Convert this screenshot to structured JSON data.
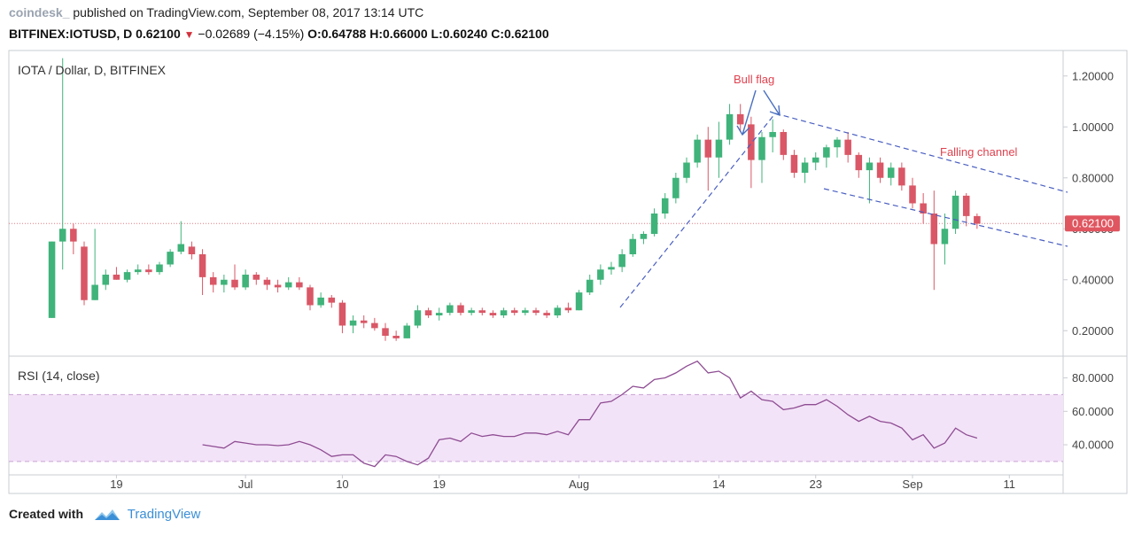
{
  "header": {
    "brand": "coindesk_",
    "published": "published on TradingView.com, September 08, 2017 13:14 UTC",
    "symbol": "BITFINEX:IOTUSD, D",
    "last": "0.62100",
    "change": "−0.02689 (−4.15%)",
    "o_label": "O:",
    "o": "0.64788",
    "h_label": "H:",
    "h": "0.66000",
    "l_label": "L:",
    "l": "0.60240",
    "c_label": "C:",
    "c": "0.62100"
  },
  "footer": {
    "created_with": "Created with",
    "tradingview": "TradingView"
  },
  "colors": {
    "up": "#3fb37a",
    "down": "#d95766",
    "rsi_line": "#8e4d93",
    "rsi_band": "#f3e3f8",
    "trend": "#4a5fc1",
    "annotation": "#e0424f"
  },
  "chart_data": [
    {
      "type": "candlestick",
      "title": "IOTA / Dollar, D, BITFINEX",
      "ylim": [
        0.1,
        1.3
      ],
      "yticks": [
        "1.20000",
        "1.00000",
        "0.80000",
        "0.60000",
        "0.40000",
        "0.20000"
      ],
      "y_tick_values": [
        1.2,
        1.0,
        0.8,
        0.6,
        0.4,
        0.2
      ],
      "current_price_label": "0.62100",
      "current_price": 0.621,
      "x_tick_labels": [
        "19",
        "Jul",
        "10",
        "19",
        "Aug",
        "14",
        "23",
        "Sep",
        "11"
      ],
      "x_tick_days": [
        8,
        20,
        29,
        38,
        51,
        64,
        73,
        82,
        91
      ],
      "xlim": [
        -2,
        96
      ],
      "annotations": [
        {
          "text": "Bull flag"
        },
        {
          "text": "Falling channel"
        }
      ],
      "candles": [
        {
          "d": 2,
          "o": 0.25,
          "h": 0.55,
          "l": 0.25,
          "c": 0.55
        },
        {
          "d": 3,
          "o": 0.55,
          "h": 1.27,
          "l": 0.44,
          "c": 0.6
        },
        {
          "d": 4,
          "o": 0.6,
          "h": 0.62,
          "l": 0.5,
          "c": 0.55
        },
        {
          "d": 5,
          "o": 0.53,
          "h": 0.55,
          "l": 0.3,
          "c": 0.32
        },
        {
          "d": 6,
          "o": 0.32,
          "h": 0.6,
          "l": 0.32,
          "c": 0.38
        },
        {
          "d": 7,
          "o": 0.38,
          "h": 0.44,
          "l": 0.36,
          "c": 0.42
        },
        {
          "d": 8,
          "o": 0.42,
          "h": 0.45,
          "l": 0.4,
          "c": 0.4
        },
        {
          "d": 9,
          "o": 0.4,
          "h": 0.44,
          "l": 0.39,
          "c": 0.43
        },
        {
          "d": 10,
          "o": 0.43,
          "h": 0.46,
          "l": 0.42,
          "c": 0.44
        },
        {
          "d": 11,
          "o": 0.44,
          "h": 0.46,
          "l": 0.42,
          "c": 0.43
        },
        {
          "d": 12,
          "o": 0.43,
          "h": 0.47,
          "l": 0.42,
          "c": 0.46
        },
        {
          "d": 13,
          "o": 0.46,
          "h": 0.52,
          "l": 0.45,
          "c": 0.51
        },
        {
          "d": 14,
          "o": 0.51,
          "h": 0.63,
          "l": 0.5,
          "c": 0.54
        },
        {
          "d": 15,
          "o": 0.53,
          "h": 0.55,
          "l": 0.48,
          "c": 0.5
        },
        {
          "d": 16,
          "o": 0.5,
          "h": 0.52,
          "l": 0.34,
          "c": 0.41
        },
        {
          "d": 17,
          "o": 0.41,
          "h": 0.43,
          "l": 0.35,
          "c": 0.38
        },
        {
          "d": 18,
          "o": 0.38,
          "h": 0.42,
          "l": 0.35,
          "c": 0.4
        },
        {
          "d": 19,
          "o": 0.4,
          "h": 0.46,
          "l": 0.36,
          "c": 0.37
        },
        {
          "d": 20,
          "o": 0.37,
          "h": 0.44,
          "l": 0.36,
          "c": 0.42
        },
        {
          "d": 21,
          "o": 0.42,
          "h": 0.43,
          "l": 0.38,
          "c": 0.4
        },
        {
          "d": 22,
          "o": 0.4,
          "h": 0.41,
          "l": 0.36,
          "c": 0.38
        },
        {
          "d": 23,
          "o": 0.38,
          "h": 0.4,
          "l": 0.35,
          "c": 0.37
        },
        {
          "d": 24,
          "o": 0.37,
          "h": 0.41,
          "l": 0.36,
          "c": 0.39
        },
        {
          "d": 25,
          "o": 0.39,
          "h": 0.41,
          "l": 0.36,
          "c": 0.37
        },
        {
          "d": 26,
          "o": 0.37,
          "h": 0.38,
          "l": 0.28,
          "c": 0.3
        },
        {
          "d": 27,
          "o": 0.3,
          "h": 0.35,
          "l": 0.29,
          "c": 0.33
        },
        {
          "d": 28,
          "o": 0.33,
          "h": 0.34,
          "l": 0.29,
          "c": 0.31
        },
        {
          "d": 29,
          "o": 0.31,
          "h": 0.32,
          "l": 0.19,
          "c": 0.22
        },
        {
          "d": 30,
          "o": 0.22,
          "h": 0.26,
          "l": 0.19,
          "c": 0.24
        },
        {
          "d": 31,
          "o": 0.24,
          "h": 0.26,
          "l": 0.21,
          "c": 0.23
        },
        {
          "d": 32,
          "o": 0.23,
          "h": 0.25,
          "l": 0.2,
          "c": 0.21
        },
        {
          "d": 33,
          "o": 0.21,
          "h": 0.23,
          "l": 0.16,
          "c": 0.18
        },
        {
          "d": 34,
          "o": 0.18,
          "h": 0.2,
          "l": 0.16,
          "c": 0.17
        },
        {
          "d": 35,
          "o": 0.17,
          "h": 0.23,
          "l": 0.17,
          "c": 0.22
        },
        {
          "d": 36,
          "o": 0.22,
          "h": 0.3,
          "l": 0.21,
          "c": 0.28
        },
        {
          "d": 37,
          "o": 0.28,
          "h": 0.29,
          "l": 0.25,
          "c": 0.26
        },
        {
          "d": 38,
          "o": 0.26,
          "h": 0.29,
          "l": 0.24,
          "c": 0.27
        },
        {
          "d": 39,
          "o": 0.27,
          "h": 0.31,
          "l": 0.26,
          "c": 0.3
        },
        {
          "d": 40,
          "o": 0.3,
          "h": 0.31,
          "l": 0.26,
          "c": 0.27
        },
        {
          "d": 41,
          "o": 0.27,
          "h": 0.29,
          "l": 0.26,
          "c": 0.28
        },
        {
          "d": 42,
          "o": 0.28,
          "h": 0.29,
          "l": 0.26,
          "c": 0.27
        },
        {
          "d": 43,
          "o": 0.27,
          "h": 0.28,
          "l": 0.25,
          "c": 0.26
        },
        {
          "d": 44,
          "o": 0.26,
          "h": 0.29,
          "l": 0.25,
          "c": 0.28
        },
        {
          "d": 45,
          "o": 0.28,
          "h": 0.29,
          "l": 0.26,
          "c": 0.27
        },
        {
          "d": 46,
          "o": 0.27,
          "h": 0.29,
          "l": 0.26,
          "c": 0.28
        },
        {
          "d": 47,
          "o": 0.28,
          "h": 0.29,
          "l": 0.26,
          "c": 0.27
        },
        {
          "d": 48,
          "o": 0.27,
          "h": 0.28,
          "l": 0.25,
          "c": 0.26
        },
        {
          "d": 49,
          "o": 0.26,
          "h": 0.3,
          "l": 0.25,
          "c": 0.29
        },
        {
          "d": 50,
          "o": 0.29,
          "h": 0.31,
          "l": 0.27,
          "c": 0.28
        },
        {
          "d": 51,
          "o": 0.28,
          "h": 0.36,
          "l": 0.28,
          "c": 0.35
        },
        {
          "d": 52,
          "o": 0.35,
          "h": 0.42,
          "l": 0.34,
          "c": 0.4
        },
        {
          "d": 53,
          "o": 0.4,
          "h": 0.46,
          "l": 0.38,
          "c": 0.44
        },
        {
          "d": 54,
          "o": 0.44,
          "h": 0.47,
          "l": 0.42,
          "c": 0.45
        },
        {
          "d": 55,
          "o": 0.45,
          "h": 0.52,
          "l": 0.43,
          "c": 0.5
        },
        {
          "d": 56,
          "o": 0.5,
          "h": 0.58,
          "l": 0.49,
          "c": 0.56
        },
        {
          "d": 57,
          "o": 0.56,
          "h": 0.59,
          "l": 0.54,
          "c": 0.58
        },
        {
          "d": 58,
          "o": 0.58,
          "h": 0.68,
          "l": 0.57,
          "c": 0.66
        },
        {
          "d": 59,
          "o": 0.66,
          "h": 0.74,
          "l": 0.64,
          "c": 0.72
        },
        {
          "d": 60,
          "o": 0.72,
          "h": 0.82,
          "l": 0.7,
          "c": 0.8
        },
        {
          "d": 61,
          "o": 0.8,
          "h": 0.88,
          "l": 0.78,
          "c": 0.86
        },
        {
          "d": 62,
          "o": 0.86,
          "h": 0.97,
          "l": 0.84,
          "c": 0.95
        },
        {
          "d": 63,
          "o": 0.95,
          "h": 1.0,
          "l": 0.75,
          "c": 0.88
        },
        {
          "d": 64,
          "o": 0.88,
          "h": 1.02,
          "l": 0.8,
          "c": 0.95
        },
        {
          "d": 65,
          "o": 0.95,
          "h": 1.09,
          "l": 0.93,
          "c": 1.05
        },
        {
          "d": 66,
          "o": 1.05,
          "h": 1.09,
          "l": 0.98,
          "c": 1.01
        },
        {
          "d": 67,
          "o": 1.01,
          "h": 1.04,
          "l": 0.76,
          "c": 0.87
        },
        {
          "d": 68,
          "o": 0.87,
          "h": 0.98,
          "l": 0.78,
          "c": 0.96
        },
        {
          "d": 69,
          "o": 0.96,
          "h": 1.03,
          "l": 0.9,
          "c": 0.98
        },
        {
          "d": 70,
          "o": 0.98,
          "h": 0.99,
          "l": 0.87,
          "c": 0.89
        },
        {
          "d": 71,
          "o": 0.89,
          "h": 0.91,
          "l": 0.8,
          "c": 0.82
        },
        {
          "d": 72,
          "o": 0.82,
          "h": 0.88,
          "l": 0.78,
          "c": 0.86
        },
        {
          "d": 73,
          "o": 0.86,
          "h": 0.9,
          "l": 0.83,
          "c": 0.88
        },
        {
          "d": 74,
          "o": 0.88,
          "h": 0.93,
          "l": 0.84,
          "c": 0.92
        },
        {
          "d": 75,
          "o": 0.92,
          "h": 0.96,
          "l": 0.88,
          "c": 0.95
        },
        {
          "d": 76,
          "o": 0.95,
          "h": 0.98,
          "l": 0.86,
          "c": 0.89
        },
        {
          "d": 77,
          "o": 0.89,
          "h": 0.9,
          "l": 0.8,
          "c": 0.83
        },
        {
          "d": 78,
          "o": 0.83,
          "h": 0.88,
          "l": 0.7,
          "c": 0.86
        },
        {
          "d": 79,
          "o": 0.86,
          "h": 0.88,
          "l": 0.78,
          "c": 0.8
        },
        {
          "d": 80,
          "o": 0.8,
          "h": 0.86,
          "l": 0.77,
          "c": 0.84
        },
        {
          "d": 81,
          "o": 0.84,
          "h": 0.86,
          "l": 0.75,
          "c": 0.77
        },
        {
          "d": 82,
          "o": 0.77,
          "h": 0.8,
          "l": 0.68,
          "c": 0.7
        },
        {
          "d": 83,
          "o": 0.7,
          "h": 0.74,
          "l": 0.62,
          "c": 0.66
        },
        {
          "d": 84,
          "o": 0.66,
          "h": 0.75,
          "l": 0.36,
          "c": 0.54
        },
        {
          "d": 85,
          "o": 0.54,
          "h": 0.66,
          "l": 0.46,
          "c": 0.6
        },
        {
          "d": 86,
          "o": 0.6,
          "h": 0.75,
          "l": 0.58,
          "c": 0.73
        },
        {
          "d": 87,
          "o": 0.73,
          "h": 0.74,
          "l": 0.61,
          "c": 0.65
        },
        {
          "d": 88,
          "o": 0.65,
          "h": 0.66,
          "l": 0.6,
          "c": 0.62
        }
      ]
    },
    {
      "type": "line",
      "title": "RSI (14, close)",
      "ylim": [
        22,
        93
      ],
      "yticks": [
        "80.0000",
        "60.0000",
        "40.0000"
      ],
      "y_tick_values": [
        80,
        60,
        40
      ],
      "band": [
        30,
        70
      ],
      "series": [
        {
          "x": [
            16,
            17,
            18,
            19,
            20,
            21,
            22,
            23,
            24,
            25,
            26,
            27,
            28,
            29,
            30,
            31,
            32,
            33,
            34,
            35,
            36,
            37,
            38,
            39,
            40,
            41,
            42,
            43,
            44,
            45,
            46,
            47,
            48,
            49,
            50,
            51,
            52,
            53,
            54,
            55,
            56,
            57,
            58,
            59,
            60,
            61,
            62,
            63,
            64,
            65,
            66,
            67,
            68,
            69,
            70,
            71,
            72,
            73,
            74,
            75,
            76,
            77,
            78,
            79,
            80,
            81,
            82,
            83,
            84,
            85,
            86,
            87,
            88
          ],
          "y": [
            40,
            39,
            38,
            42,
            41,
            40,
            40,
            39.5,
            40,
            42,
            40,
            37,
            33,
            34,
            34,
            29,
            27,
            34,
            33,
            30,
            28,
            32,
            43,
            44,
            42,
            47,
            45,
            46,
            45,
            45,
            47,
            47,
            46,
            48,
            46,
            55,
            55,
            65,
            66,
            70,
            75,
            74,
            79,
            80,
            83,
            87,
            90,
            83,
            84,
            80,
            68,
            72,
            67,
            66,
            61,
            62,
            64,
            64,
            67,
            63,
            58,
            54,
            57,
            54,
            53,
            50,
            43,
            46,
            38,
            41,
            50,
            46,
            44
          ]
        }
      ]
    }
  ]
}
